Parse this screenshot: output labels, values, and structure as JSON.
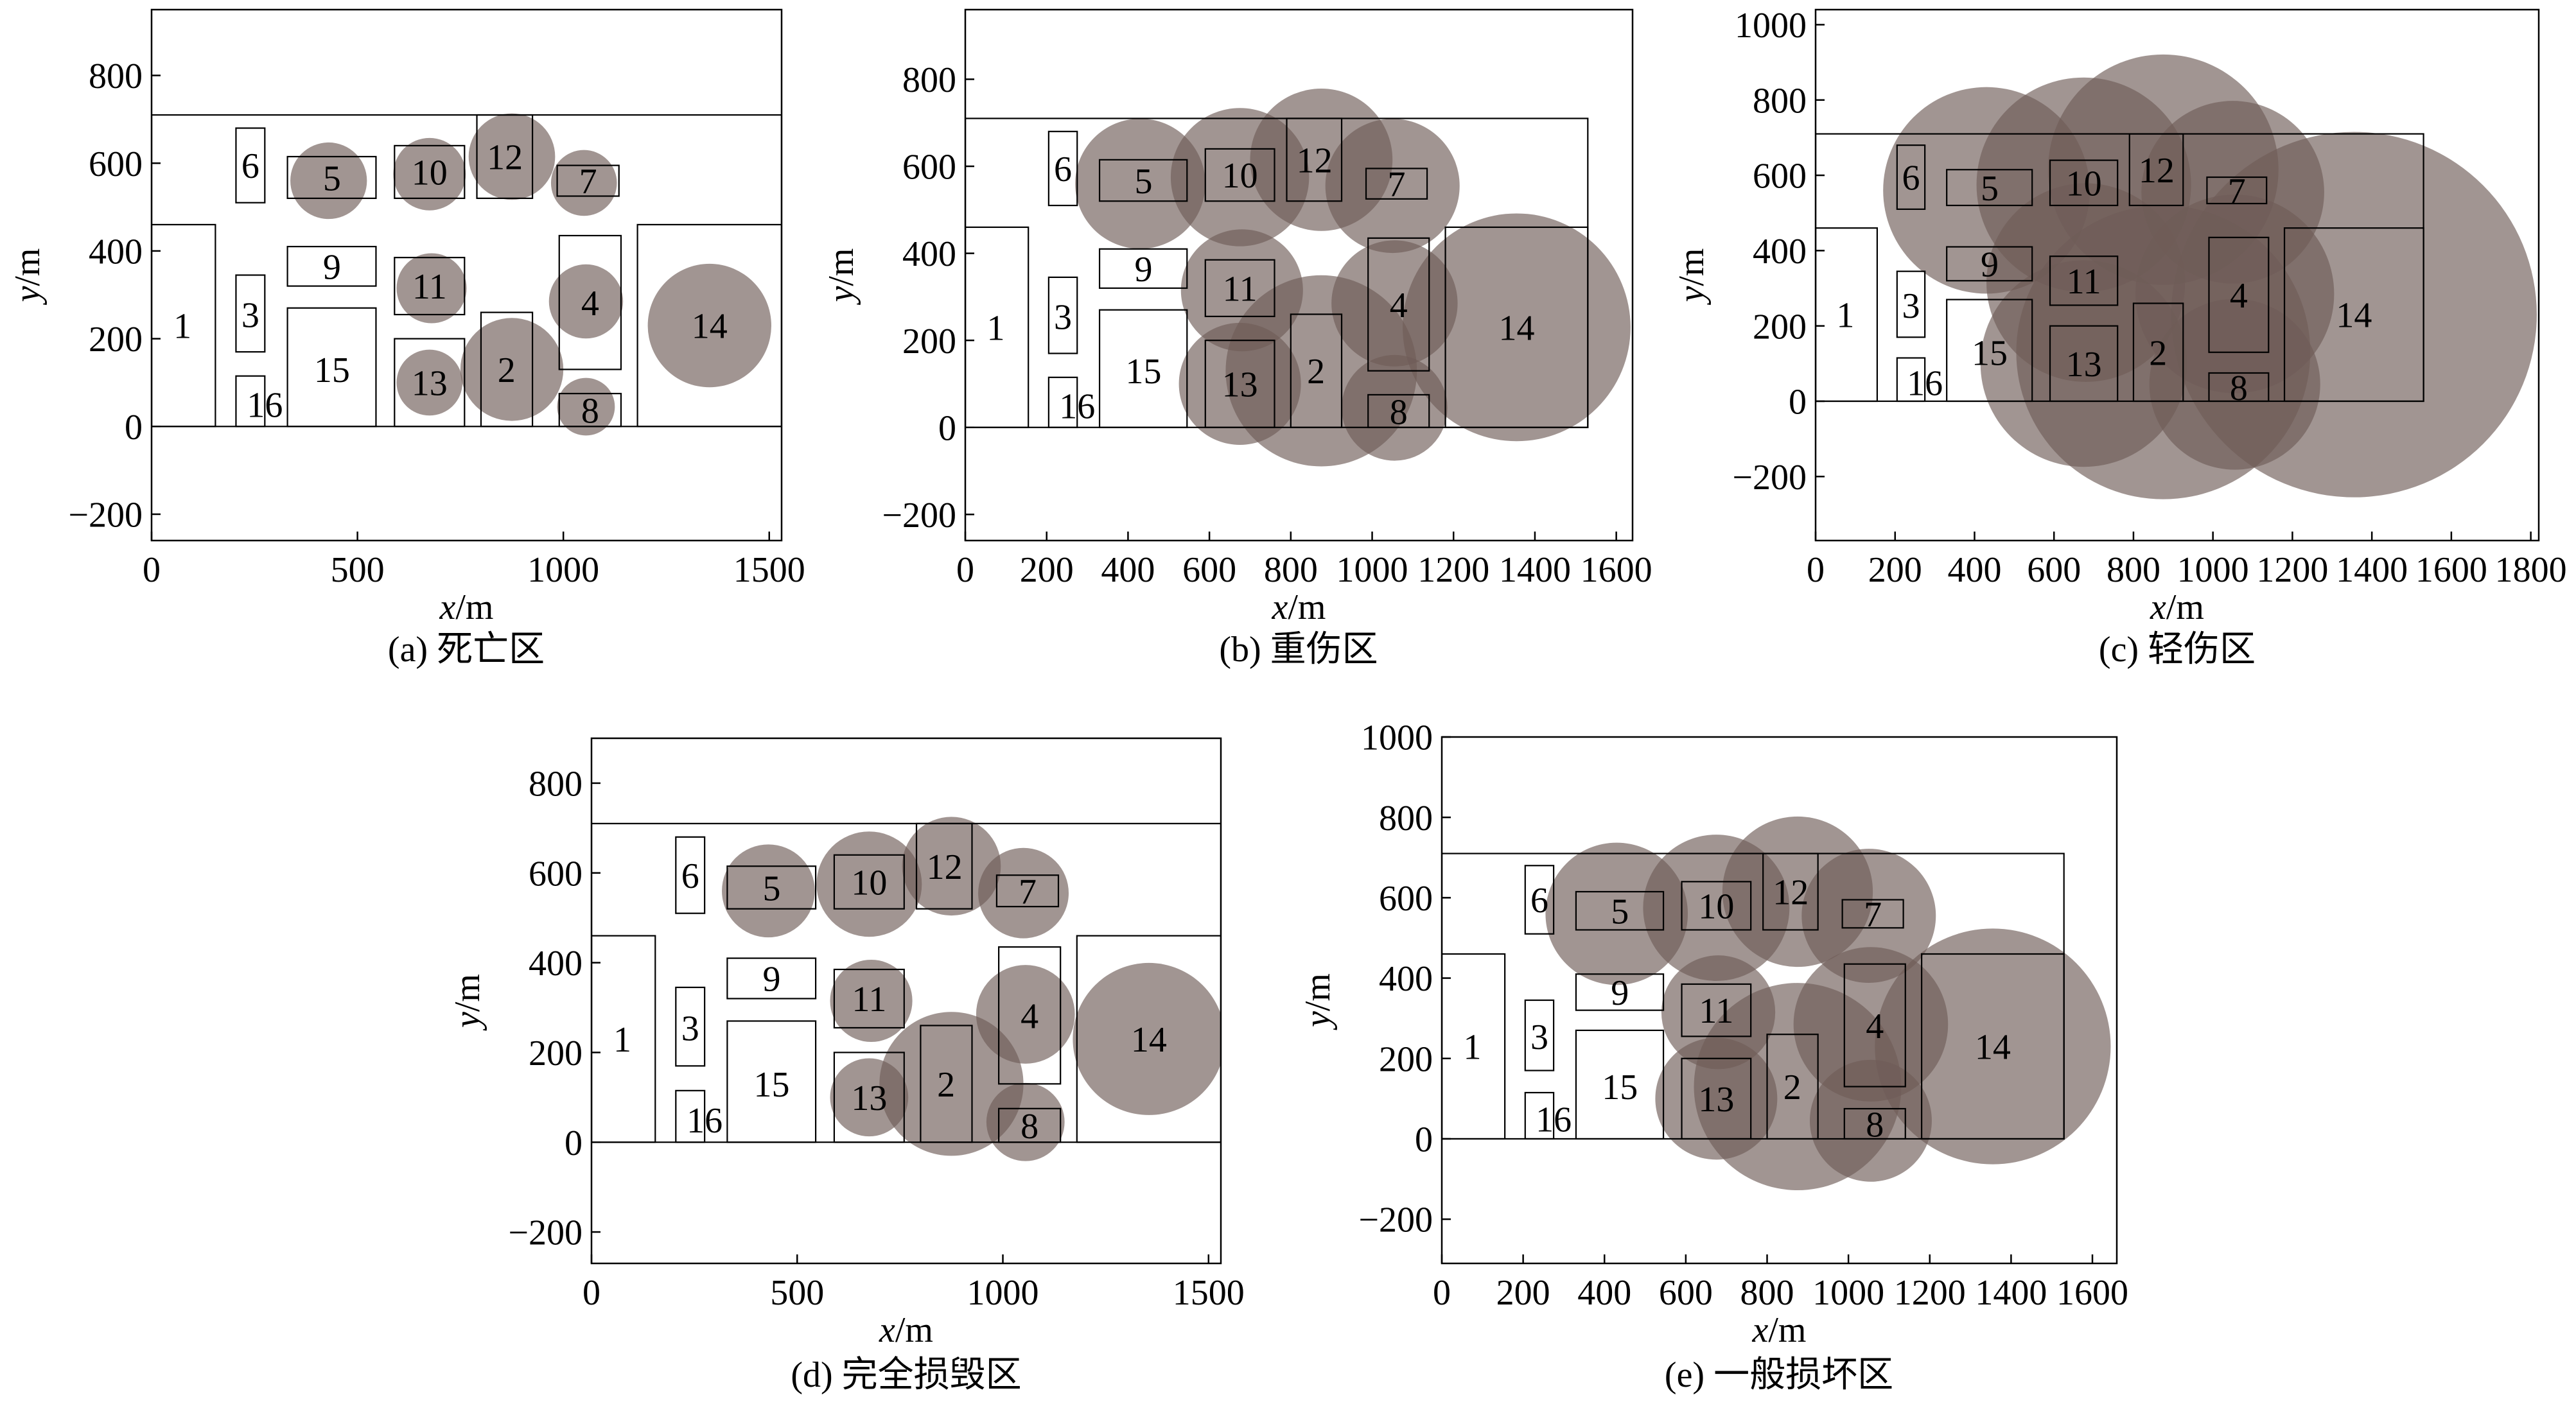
{
  "chart_data": [
    {
      "id": "a",
      "type": "scatter",
      "caption": "(a) 死亡区",
      "xlabel_italic": "x",
      "xlabel_unit": "/m",
      "ylabel_italic": "y",
      "ylabel_unit": "/m",
      "xlim": [
        0,
        1530
      ],
      "ylim": [
        -260,
        950
      ],
      "xticks": [
        0,
        500,
        1000,
        1500
      ],
      "yticks": [
        -200,
        0,
        200,
        400,
        600,
        800
      ],
      "circles": [
        {
          "label": "5",
          "x": 430,
          "y": 560,
          "r": 93
        },
        {
          "label": "10",
          "x": 675,
          "y": 575,
          "r": 88
        },
        {
          "label": "12",
          "x": 875,
          "y": 615,
          "r": 105
        },
        {
          "label": "7",
          "x": 1050,
          "y": 555,
          "r": 80
        },
        {
          "label": "11",
          "x": 680,
          "y": 315,
          "r": 85
        },
        {
          "label": "4",
          "x": 1055,
          "y": 285,
          "r": 90
        },
        {
          "label": "14",
          "x": 1355,
          "y": 230,
          "r": 150
        },
        {
          "label": "13",
          "x": 675,
          "y": 100,
          "r": 80
        },
        {
          "label": "2",
          "x": 875,
          "y": 130,
          "r": 125
        },
        {
          "label": "8",
          "x": 1055,
          "y": 45,
          "r": 70
        }
      ]
    },
    {
      "id": "b",
      "type": "scatter",
      "caption": "(b) 重伤区",
      "xlabel_italic": "x",
      "xlabel_unit": "/m",
      "ylabel_italic": "y",
      "ylabel_unit": "/m",
      "xlim": [
        0,
        1640
      ],
      "ylim": [
        -260,
        960
      ],
      "xticks": [
        0,
        200,
        400,
        600,
        800,
        1000,
        1200,
        1400,
        1600
      ],
      "yticks": [
        -200,
        0,
        200,
        400,
        600,
        800
      ],
      "circles": [
        {
          "label": "5",
          "x": 430,
          "y": 560,
          "r": 160
        },
        {
          "label": "10",
          "x": 675,
          "y": 575,
          "r": 170
        },
        {
          "label": "12",
          "x": 875,
          "y": 615,
          "r": 175
        },
        {
          "label": "7",
          "x": 1050,
          "y": 555,
          "r": 165
        },
        {
          "label": "11",
          "x": 680,
          "y": 315,
          "r": 150
        },
        {
          "label": "4",
          "x": 1055,
          "y": 285,
          "r": 155
        },
        {
          "label": "14",
          "x": 1355,
          "y": 230,
          "r": 280
        },
        {
          "label": "13",
          "x": 675,
          "y": 100,
          "r": 150
        },
        {
          "label": "2",
          "x": 875,
          "y": 130,
          "r": 235
        },
        {
          "label": "8",
          "x": 1055,
          "y": 45,
          "r": 130
        }
      ]
    },
    {
      "id": "c",
      "type": "scatter",
      "caption": "(c) 轻伤区",
      "xlabel_italic": "x",
      "xlabel_unit": "/m",
      "ylabel_italic": "y",
      "ylabel_unit": "/m",
      "xlim": [
        0,
        1820
      ],
      "ylim": [
        -370,
        1040
      ],
      "xticks": [
        0,
        200,
        400,
        600,
        800,
        1000,
        1200,
        1400,
        1600,
        1800
      ],
      "yticks": [
        -200,
        0,
        200,
        400,
        600,
        800,
        1000
      ],
      "circles": [
        {
          "label": "5",
          "x": 430,
          "y": 560,
          "r": 260
        },
        {
          "label": "10",
          "x": 675,
          "y": 575,
          "r": 270
        },
        {
          "label": "12",
          "x": 875,
          "y": 615,
          "r": 290
        },
        {
          "label": "7",
          "x": 1050,
          "y": 555,
          "r": 230
        },
        {
          "label": "11",
          "x": 680,
          "y": 315,
          "r": 250
        },
        {
          "label": "4",
          "x": 1055,
          "y": 285,
          "r": 250
        },
        {
          "label": "14",
          "x": 1355,
          "y": 230,
          "r": 460
        },
        {
          "label": "13",
          "x": 675,
          "y": 100,
          "r": 260
        },
        {
          "label": "2",
          "x": 875,
          "y": 130,
          "r": 370
        },
        {
          "label": "8",
          "x": 1055,
          "y": 45,
          "r": 215
        }
      ]
    },
    {
      "id": "d",
      "type": "scatter",
      "caption": "(d) 完全损毁区",
      "xlabel_italic": "x",
      "xlabel_unit": "/m",
      "ylabel_italic": "y",
      "ylabel_unit": "/m",
      "xlim": [
        0,
        1530
      ],
      "ylim": [
        -270,
        900
      ],
      "xticks": [
        0,
        500,
        1000,
        1500
      ],
      "yticks": [
        -200,
        0,
        200,
        400,
        600,
        800
      ],
      "circles": [
        {
          "label": "5",
          "x": 430,
          "y": 560,
          "r": 113
        },
        {
          "label": "10",
          "x": 675,
          "y": 575,
          "r": 128
        },
        {
          "label": "12",
          "x": 875,
          "y": 615,
          "r": 120
        },
        {
          "label": "7",
          "x": 1050,
          "y": 555,
          "r": 110
        },
        {
          "label": "11",
          "x": 680,
          "y": 315,
          "r": 100
        },
        {
          "label": "4",
          "x": 1055,
          "y": 285,
          "r": 120
        },
        {
          "label": "14",
          "x": 1355,
          "y": 230,
          "r": 185
        },
        {
          "label": "13",
          "x": 675,
          "y": 100,
          "r": 95
        },
        {
          "label": "2",
          "x": 875,
          "y": 130,
          "r": 175
        },
        {
          "label": "8",
          "x": 1055,
          "y": 45,
          "r": 95
        }
      ]
    },
    {
      "id": "e",
      "type": "scatter",
      "caption": "(e) 一般损坏区",
      "xlabel_italic": "x",
      "xlabel_unit": "/m",
      "ylabel_italic": "y",
      "ylabel_unit": "/m",
      "xlim": [
        0,
        1660
      ],
      "ylim": [
        -310,
        1000
      ],
      "xticks": [
        0,
        200,
        400,
        600,
        800,
        1000,
        1200,
        1400,
        1600
      ],
      "yticks": [
        -200,
        0,
        200,
        400,
        600,
        800,
        1000
      ],
      "circles": [
        {
          "label": "5",
          "x": 430,
          "y": 560,
          "r": 175
        },
        {
          "label": "10",
          "x": 675,
          "y": 575,
          "r": 180
        },
        {
          "label": "12",
          "x": 875,
          "y": 615,
          "r": 185
        },
        {
          "label": "7",
          "x": 1050,
          "y": 555,
          "r": 165
        },
        {
          "label": "11",
          "x": 680,
          "y": 315,
          "r": 140
        },
        {
          "label": "4",
          "x": 1055,
          "y": 285,
          "r": 190
        },
        {
          "label": "14",
          "x": 1355,
          "y": 230,
          "r": 290
        },
        {
          "label": "13",
          "x": 675,
          "y": 100,
          "r": 150
        },
        {
          "label": "2",
          "x": 875,
          "y": 130,
          "r": 255
        },
        {
          "label": "8",
          "x": 1055,
          "y": 45,
          "r": 150
        }
      ]
    }
  ],
  "site": {
    "boundary": [
      0,
      0,
      1530,
      710
    ],
    "rects": [
      {
        "label": "1",
        "x0": 0,
        "y0": 0,
        "x1": 155,
        "y1": 460,
        "tx": 75,
        "ty": 230
      },
      {
        "label": "3",
        "x0": 205,
        "y0": 170,
        "x1": 275,
        "y1": 345,
        "tx": 240,
        "ty": 255
      },
      {
        "label": "16",
        "x0": 205,
        "y0": 0,
        "x1": 275,
        "y1": 115,
        "tx": 275,
        "ty": 50
      },
      {
        "label": "6",
        "x0": 205,
        "y0": 510,
        "x1": 275,
        "y1": 680,
        "tx": 240,
        "ty": 595
      },
      {
        "label": "9",
        "x0": 330,
        "y0": 320,
        "x1": 545,
        "y1": 410,
        "tx": 438,
        "ty": 365
      },
      {
        "label": "15",
        "x0": 330,
        "y0": 0,
        "x1": 545,
        "y1": 270,
        "tx": 438,
        "ty": 130
      },
      {
        "label": "5",
        "x0": 330,
        "y0": 520,
        "x1": 545,
        "y1": 615,
        "tx": 438,
        "ty": 567
      },
      {
        "label": "10",
        "x0": 590,
        "y0": 520,
        "x1": 760,
        "y1": 640,
        "tx": 675,
        "ty": 580
      },
      {
        "label": "12",
        "x0": 790,
        "y0": 520,
        "x1": 925,
        "y1": 710,
        "tx": 858,
        "ty": 615
      },
      {
        "label": "7",
        "x0": 985,
        "y0": 525,
        "x1": 1135,
        "y1": 595,
        "tx": 1060,
        "ty": 560
      },
      {
        "label": "11",
        "x0": 590,
        "y0": 255,
        "x1": 760,
        "y1": 385,
        "tx": 675,
        "ty": 320
      },
      {
        "label": "13",
        "x0": 590,
        "y0": 0,
        "x1": 760,
        "y1": 200,
        "tx": 675,
        "ty": 100
      },
      {
        "label": "2",
        "x0": 800,
        "y0": 0,
        "x1": 925,
        "y1": 260,
        "tx": 862,
        "ty": 130
      },
      {
        "label": "4",
        "x0": 990,
        "y0": 130,
        "x1": 1140,
        "y1": 435,
        "tx": 1065,
        "ty": 282
      },
      {
        "label": "8",
        "x0": 990,
        "y0": 0,
        "x1": 1140,
        "y1": 75,
        "tx": 1065,
        "ty": 37
      },
      {
        "label": "14",
        "x0": 1180,
        "y0": 0,
        "x1": 1530,
        "y1": 460,
        "tx": 1355,
        "ty": 230
      }
    ]
  },
  "style": {
    "circle_fill": "#6e5c58",
    "circle_opacity": 0.65,
    "stroke": "#000000"
  }
}
